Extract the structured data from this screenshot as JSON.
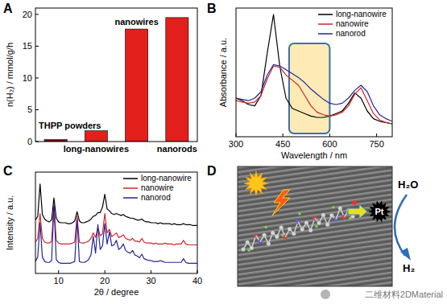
{
  "chart_data": [
    {
      "panel": "A",
      "type": "bar",
      "y_label": "n(H₂) / mmol/g/h",
      "categories": [
        "THPP powders",
        "long-nanowires",
        "nanowires",
        "nanorods"
      ],
      "values": [
        0.3,
        1.7,
        17.7,
        19.5
      ],
      "colors": [
        "#7d0a0a",
        "#e3201b",
        "#e3201b",
        "#e3201b"
      ],
      "ylim": [
        0,
        21
      ],
      "yticks": [
        0,
        5,
        10,
        15,
        20
      ],
      "tick_labels": "y"
    },
    {
      "panel": "B",
      "type": "line",
      "x_label": "Wavelength / nm",
      "y_label": "Absorbance / a.u.",
      "x": [
        300,
        320,
        340,
        360,
        380,
        400,
        420,
        440,
        460,
        480,
        500,
        520,
        540,
        560,
        580,
        600,
        620,
        640,
        660,
        680,
        700,
        720,
        740,
        760,
        780,
        800
      ],
      "series": [
        {
          "name": "long-nanowire",
          "color": "#000000",
          "values": [
            0.3,
            0.28,
            0.25,
            0.24,
            0.32,
            0.65,
            0.95,
            0.55,
            0.3,
            0.22,
            0.2,
            0.18,
            0.16,
            0.15,
            0.15,
            0.16,
            0.18,
            0.2,
            0.26,
            0.34,
            0.3,
            0.2,
            0.14,
            0.12,
            0.11,
            0.1
          ]
        },
        {
          "name": "nanowire",
          "color": "#d42424",
          "values": [
            0.28,
            0.27,
            0.26,
            0.27,
            0.32,
            0.45,
            0.55,
            0.54,
            0.48,
            0.44,
            0.4,
            0.32,
            0.24,
            0.19,
            0.17,
            0.16,
            0.17,
            0.19,
            0.24,
            0.33,
            0.38,
            0.28,
            0.18,
            0.13,
            0.11,
            0.1
          ]
        },
        {
          "name": "nanorod",
          "color": "#25259a",
          "values": [
            0.3,
            0.29,
            0.28,
            0.3,
            0.35,
            0.48,
            0.56,
            0.55,
            0.52,
            0.49,
            0.46,
            0.42,
            0.37,
            0.33,
            0.29,
            0.26,
            0.25,
            0.26,
            0.3,
            0.36,
            0.4,
            0.35,
            0.24,
            0.17,
            0.14,
            0.12
          ]
        }
      ],
      "xlim": [
        300,
        800
      ],
      "xticks": [
        300,
        450,
        600,
        750
      ],
      "ylim": [
        0,
        1
      ],
      "highlight_range": [
        470,
        600
      ],
      "legend": "upper right",
      "tick_labels": "x"
    },
    {
      "panel": "C",
      "type": "line",
      "x_label": "2θ / degree",
      "y_label": "Intensity / a.u.",
      "x": [
        5,
        5.5,
        6,
        6.5,
        7,
        7.5,
        8,
        8.5,
        9,
        9.5,
        10,
        10.5,
        11,
        11.5,
        12,
        12.5,
        13,
        13.5,
        14,
        14.5,
        15,
        15.5,
        16,
        16.5,
        17,
        17.5,
        18,
        18.5,
        19,
        19.5,
        20,
        20.5,
        21,
        21.5,
        22,
        22.5,
        23,
        23.5,
        24,
        24.5,
        25,
        25.5,
        26,
        26.5,
        27,
        27.5,
        28,
        28.5,
        29,
        29.5,
        30,
        30.5,
        31,
        31.5,
        32,
        32.5,
        33,
        33.5,
        34,
        34.5,
        35,
        35.5,
        36,
        36.5,
        37,
        37.5,
        38,
        38.5,
        39,
        39.5,
        40
      ],
      "series": [
        {
          "name": "long-nanowire",
          "color": "#000000",
          "values": [
            5.8,
            6.2,
            9.7,
            6.4,
            5.9,
            5.7,
            5.6,
            5.8,
            8.2,
            6.0,
            5.6,
            5.5,
            5.5,
            5.5,
            5.4,
            5.4,
            5.5,
            5.7,
            6.7,
            5.7,
            5.5,
            5.5,
            5.6,
            5.7,
            5.9,
            6.2,
            6.3,
            6.6,
            6.6,
            7.2,
            8.6,
            7.0,
            6.8,
            6.5,
            6.4,
            6.5,
            6.4,
            6.3,
            6.4,
            6.2,
            6.1,
            6.0,
            6.0,
            5.9,
            5.8,
            5.8,
            5.9,
            5.7,
            5.6,
            5.6,
            5.5,
            5.5,
            5.5,
            5.4,
            5.5,
            5.4,
            5.4,
            5.4,
            5.4,
            5.3,
            5.4,
            5.3,
            5.3,
            5.3,
            5.4,
            5.3,
            5.3,
            5.3,
            5.2,
            5.2,
            5.2
          ]
        },
        {
          "name": "nanowire",
          "color": "#d42424",
          "values": [
            3.4,
            3.8,
            6.5,
            3.8,
            3.4,
            3.3,
            3.3,
            3.5,
            7.5,
            3.6,
            3.3,
            3.2,
            3.2,
            3.2,
            3.2,
            3.2,
            3.3,
            3.4,
            6.2,
            3.4,
            3.3,
            3.3,
            3.4,
            3.5,
            3.8,
            4.4,
            3.9,
            5.0,
            4.1,
            4.3,
            6.5,
            4.4,
            4.8,
            4.0,
            4.2,
            4.4,
            3.9,
            4.0,
            4.2,
            3.8,
            3.7,
            3.6,
            3.8,
            3.5,
            3.5,
            3.4,
            3.8,
            3.4,
            3.3,
            3.3,
            3.3,
            3.2,
            3.3,
            3.2,
            3.2,
            3.2,
            3.3,
            3.2,
            3.2,
            3.2,
            3.1,
            3.2,
            3.2,
            3.2,
            3.6,
            3.2,
            3.1,
            3.1,
            3.1,
            3.1,
            3.1
          ]
        },
        {
          "name": "nanorod",
          "color": "#25259a",
          "values": [
            1.3,
            1.8,
            5.5,
            1.8,
            1.3,
            1.2,
            1.2,
            1.4,
            7.5,
            1.5,
            1.2,
            1.1,
            1.1,
            1.1,
            1.1,
            1.1,
            1.2,
            1.3,
            5.9,
            1.3,
            1.2,
            1.2,
            1.3,
            1.5,
            2.0,
            4.0,
            2.2,
            5.3,
            2.6,
            3.0,
            5.4,
            3.2,
            4.5,
            3.0,
            3.1,
            3.6,
            2.6,
            2.8,
            3.2,
            2.5,
            2.3,
            2.2,
            2.5,
            2.0,
            1.9,
            1.7,
            2.1,
            1.6,
            1.5,
            1.4,
            1.4,
            1.3,
            1.3,
            1.3,
            1.4,
            1.3,
            1.2,
            1.2,
            1.2,
            1.2,
            1.2,
            1.2,
            1.2,
            1.2,
            1.6,
            1.2,
            1.1,
            1.1,
            1.1,
            1.1,
            1.1
          ]
        }
      ],
      "xlim": [
        5,
        40
      ],
      "xticks": [
        10,
        20,
        30,
        40
      ],
      "ylim": [
        0,
        11
      ],
      "legend": "upper right",
      "tick_labels": "x"
    }
  ],
  "diagram": {
    "panel": "D",
    "catalyst": "Pt",
    "reactant": "H₂O",
    "product": "H₂"
  },
  "watermark": "二维材料2DMaterial"
}
